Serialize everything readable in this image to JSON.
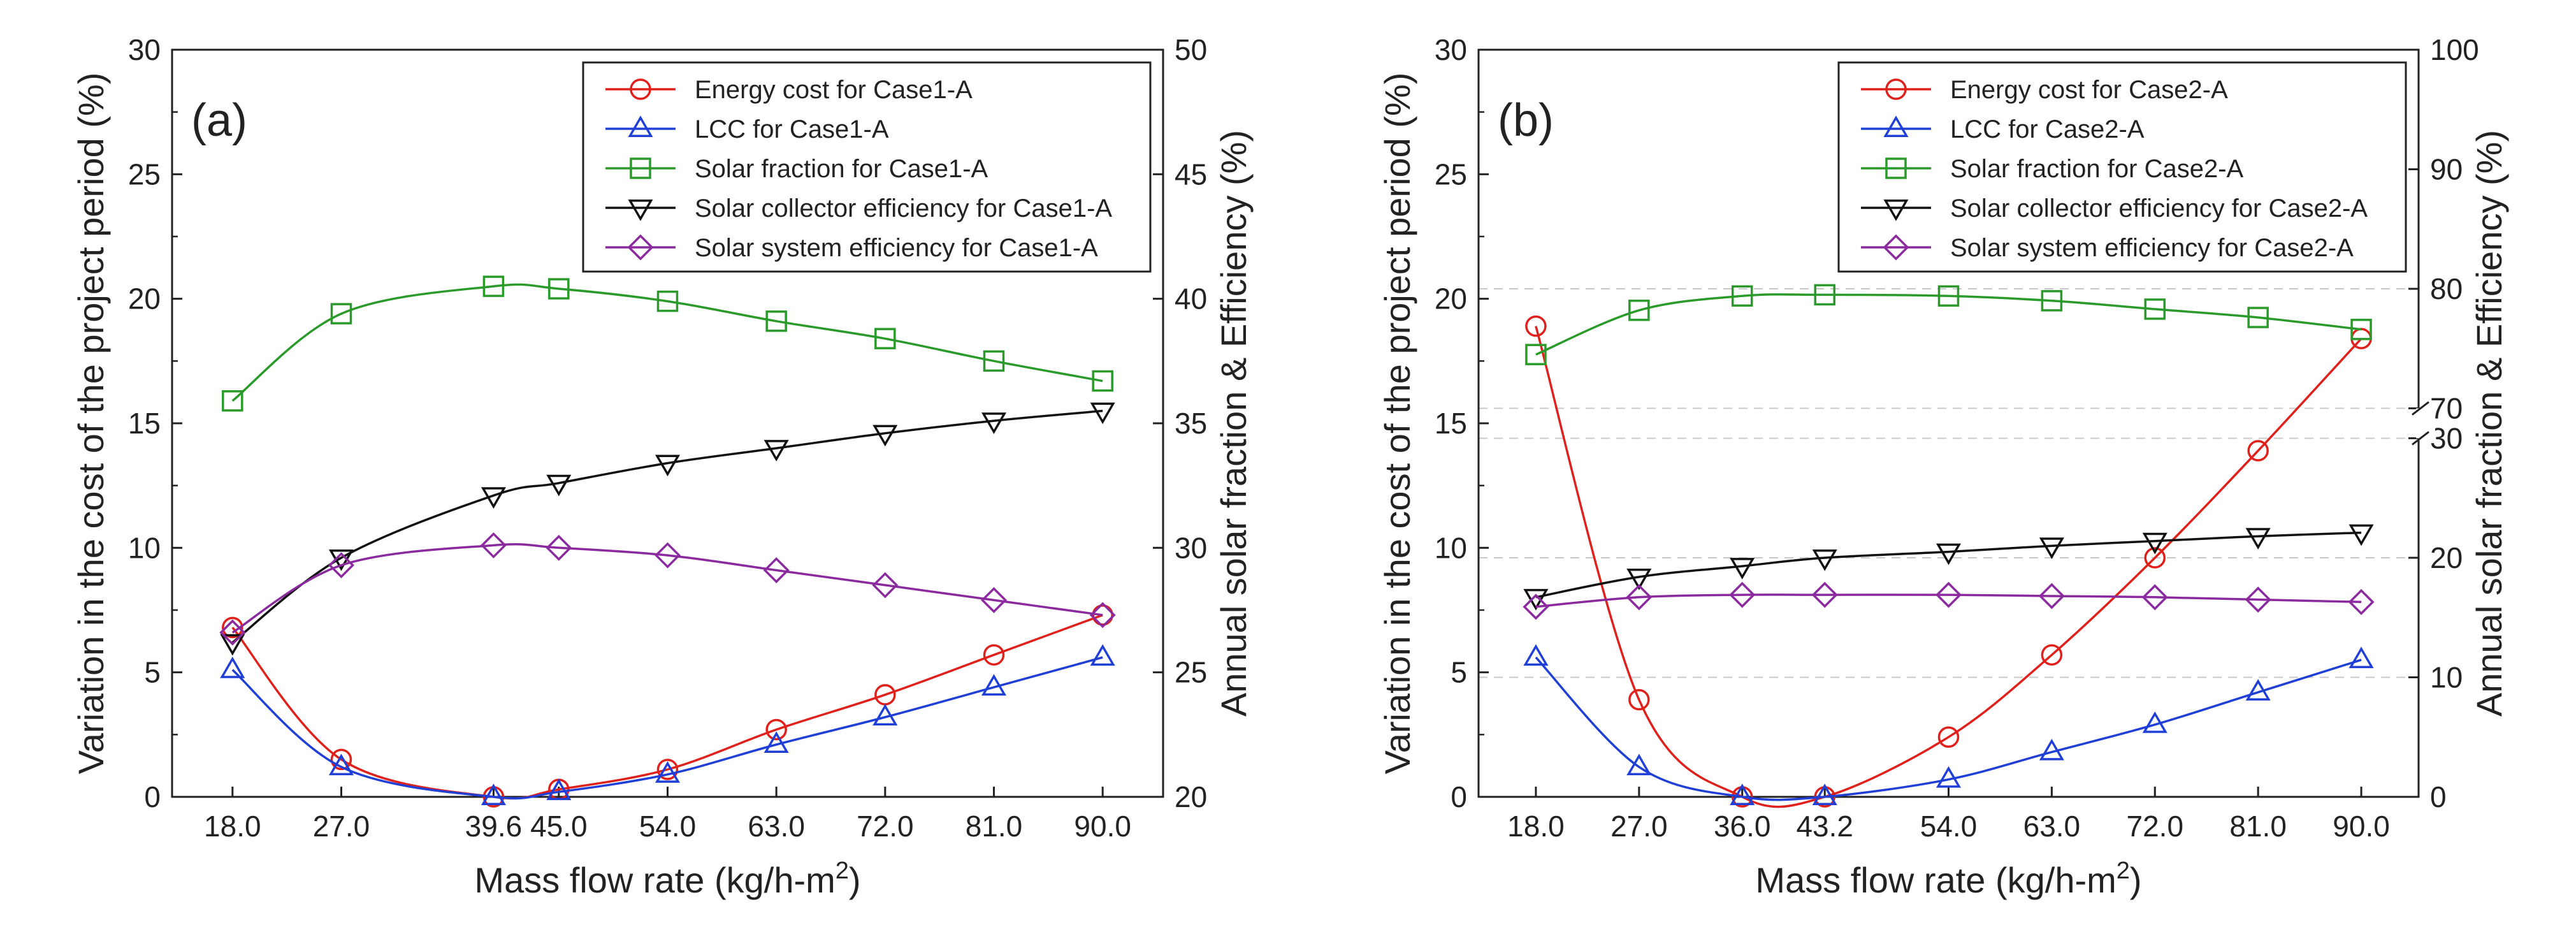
{
  "chart_data": [
    {
      "type": "line",
      "panel_label": "(a)",
      "xlabel": "Mass flow rate (kg/h-m",
      "xlabel_sup": "2",
      "xlabel_end": ")",
      "ylabel": "Variation in the cost of the project period (%)",
      "y2label": "Annual solar fraction & Efficiency (%)",
      "x_tick_labels": [
        "18.0",
        "27.0",
        "39.6",
        "45.0",
        "54.0",
        "63.0",
        "72.0",
        "81.0",
        "90.0"
      ],
      "x_tick_values": [
        18,
        27,
        39.6,
        45,
        54,
        63,
        72,
        81,
        90
      ],
      "xlim": [
        13,
        95
      ],
      "ylim": [
        0,
        30
      ],
      "y_ticks": [
        "0",
        "5",
        "10",
        "15",
        "20",
        "25",
        "30"
      ],
      "y2lim": [
        20,
        50
      ],
      "y2_ticks": [
        "20",
        "25",
        "30",
        "35",
        "40",
        "45",
        "50"
      ],
      "legend_position": "top-right",
      "series": [
        {
          "name": "Energy cost for Case1-A",
          "axis": "left",
          "color": "#e0201b",
          "marker": "circle",
          "x": [
            18,
            27,
            39.6,
            45,
            54,
            63,
            72,
            81,
            90
          ],
          "values": [
            6.8,
            1.5,
            0.0,
            0.3,
            1.1,
            2.7,
            4.1,
            5.7,
            7.3
          ]
        },
        {
          "name": "LCC for Case1-A",
          "axis": "left",
          "color": "#1f3fd6",
          "marker": "triangle-up",
          "x": [
            18,
            27,
            39.6,
            45,
            54,
            63,
            72,
            81,
            90
          ],
          "values": [
            5.1,
            1.2,
            0.0,
            0.2,
            0.9,
            2.1,
            3.2,
            4.4,
            5.6
          ]
        },
        {
          "name": "Solar fraction for Case1-A",
          "axis": "right",
          "color": "#2a9a2a",
          "marker": "square",
          "x": [
            18,
            27,
            39.6,
            45,
            54,
            63,
            72,
            81,
            90
          ],
          "values": [
            35.9,
            39.4,
            40.5,
            40.4,
            39.9,
            39.1,
            38.4,
            37.5,
            36.7
          ]
        },
        {
          "name": "Solar collector efficiency for Case1-A",
          "axis": "right",
          "color": "#111111",
          "marker": "triangle-down",
          "x": [
            18,
            27,
            39.6,
            45,
            54,
            63,
            72,
            81,
            90
          ],
          "values": [
            26.2,
            29.6,
            32.1,
            32.6,
            33.4,
            34.0,
            34.6,
            35.1,
            35.5
          ]
        },
        {
          "name": "Solar system efficiency for Case1-A",
          "axis": "right",
          "color": "#8a2a9e",
          "marker": "diamond",
          "x": [
            18,
            27,
            39.6,
            45,
            54,
            63,
            72,
            81,
            90
          ],
          "values": [
            26.6,
            29.3,
            30.1,
            30.0,
            29.7,
            29.1,
            28.5,
            27.9,
            27.3
          ]
        }
      ]
    },
    {
      "type": "line",
      "panel_label": "(b)",
      "xlabel": "Mass flow rate (kg/h-m",
      "xlabel_sup": "2",
      "xlabel_end": ")",
      "ylabel": "Variation in the cost of the project period (%)",
      "y2label": "Annual solar fraction & Efficiency (%)",
      "x_tick_labels": [
        "18.0",
        "27.0",
        "36.0",
        "43.2",
        "54.0",
        "63.0",
        "72.0",
        "81.0",
        "90.0"
      ],
      "x_tick_values": [
        18,
        27,
        36,
        43.2,
        54,
        63,
        72,
        81,
        90
      ],
      "xlim": [
        13,
        95
      ],
      "ylim": [
        0,
        30
      ],
      "y_ticks": [
        "0",
        "5",
        "10",
        "15",
        "20",
        "25",
        "30"
      ],
      "y2_broken": true,
      "y2_lower_range": [
        0,
        30
      ],
      "y2_lower_ticks": [
        "0",
        "10",
        "20",
        "30"
      ],
      "y2_upper_range": [
        70,
        100
      ],
      "y2_upper_ticks": [
        "70",
        "80",
        "90",
        "100"
      ],
      "legend_position": "top-right",
      "series": [
        {
          "name": "Energy cost for Case2-A",
          "axis": "left",
          "color": "#e0201b",
          "marker": "circle",
          "x": [
            18,
            27,
            36,
            43.2,
            54,
            63,
            72,
            81,
            90
          ],
          "values": [
            18.9,
            3.9,
            0.0,
            0.0,
            2.4,
            5.7,
            9.6,
            13.9,
            18.4
          ]
        },
        {
          "name": "LCC for Case2-A",
          "axis": "left",
          "color": "#1f3fd6",
          "marker": "triangle-up",
          "x": [
            18,
            27,
            36,
            43.2,
            54,
            63,
            72,
            81,
            90
          ],
          "values": [
            5.6,
            1.2,
            0.0,
            0.0,
            0.7,
            1.8,
            2.9,
            4.2,
            5.5
          ]
        },
        {
          "name": "Solar fraction for Case2-A",
          "axis": "right",
          "color": "#2a9a2a",
          "marker": "square",
          "x": [
            18,
            27,
            36,
            43.2,
            54,
            63,
            72,
            81,
            90
          ],
          "values": [
            74.5,
            78.2,
            79.4,
            79.5,
            79.4,
            79.0,
            78.3,
            77.6,
            76.6
          ]
        },
        {
          "name": "Solar collector efficiency for Case2-A",
          "axis": "right",
          "color": "#111111",
          "marker": "triangle-down",
          "x": [
            18,
            27,
            36,
            43.2,
            54,
            63,
            72,
            81,
            90
          ],
          "values": [
            16.7,
            18.4,
            19.3,
            20.0,
            20.5,
            21.0,
            21.4,
            21.8,
            22.1
          ]
        },
        {
          "name": "Solar system efficiency for Case2-A",
          "axis": "right",
          "color": "#8a2a9e",
          "marker": "diamond",
          "x": [
            18,
            27,
            36,
            43.2,
            54,
            63,
            72,
            81,
            90
          ],
          "values": [
            15.9,
            16.7,
            16.9,
            16.9,
            16.9,
            16.8,
            16.7,
            16.5,
            16.3
          ]
        }
      ]
    }
  ]
}
